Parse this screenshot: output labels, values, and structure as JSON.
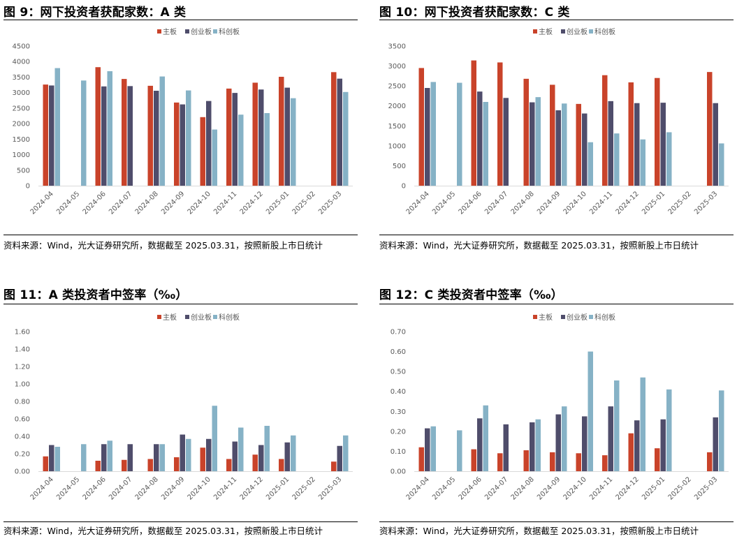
{
  "source_text": "资料来源：Wind，光大证券研究所，数据截至 2025.03.31，按照新股上市日统计",
  "colors": {
    "main": "#c9432a",
    "chinext": "#4f4d6b",
    "star": "#86b2c6"
  },
  "charts": [
    {
      "title": "图 9：网下投资者获配家数：A 类",
      "chart_data": {
        "type": "bar",
        "title": "网下投资者获配家数：A 类",
        "categories": [
          "2024-04",
          "2024-05",
          "2024-06",
          "2024-07",
          "2024-08",
          "2024-09",
          "2024-10",
          "2024-11",
          "2024-12",
          "2025-01",
          "2025-02",
          "2025-03"
        ],
        "series": [
          {
            "name": "主板",
            "values": [
              3260,
              null,
              3820,
              3440,
              3220,
              2680,
              2210,
              3130,
              3320,
              3510,
              null,
              3660
            ]
          },
          {
            "name": "创业板",
            "values": [
              3230,
              null,
              3200,
              3210,
              3060,
              2620,
              2730,
              2990,
              3100,
              3160,
              null,
              3450
            ]
          },
          {
            "name": "科创板",
            "values": [
              3790,
              3390,
              3690,
              null,
              3520,
              3070,
              1810,
              2290,
              2340,
              2820,
              null,
              3020
            ]
          }
        ],
        "ylim": [
          0,
          4500
        ],
        "yticks": [
          "0",
          "500",
          "1000",
          "1500",
          "2000",
          "2500",
          "3000",
          "3500",
          "4000",
          "4500"
        ],
        "legend_position": "top-center"
      }
    },
    {
      "title": "图 10：网下投资者获配家数：C 类",
      "chart_data": {
        "type": "bar",
        "title": "网下投资者获配家数：C 类",
        "categories": [
          "2024-04",
          "2024-05",
          "2024-06",
          "2024-07",
          "2024-08",
          "2024-09",
          "2024-10",
          "2024-11",
          "2024-12",
          "2025-01",
          "2025-02",
          "2025-03"
        ],
        "series": [
          {
            "name": "主板",
            "values": [
              2950,
              null,
              3140,
              3090,
              2680,
              2530,
              2050,
              2770,
              2590,
              2700,
              null,
              2850
            ]
          },
          {
            "name": "创业板",
            "values": [
              2450,
              null,
              2360,
              2200,
              2090,
              1890,
              1810,
              2120,
              2070,
              2080,
              null,
              2070
            ]
          },
          {
            "name": "科创板",
            "values": [
              2600,
              2580,
              2100,
              null,
              2220,
              2060,
              1090,
              1310,
              1160,
              1340,
              null,
              1060
            ]
          }
        ],
        "ylim": [
          0,
          3500
        ],
        "yticks": [
          "0",
          "500",
          "1000",
          "1500",
          "2000",
          "2500",
          "3000",
          "3500"
        ],
        "legend_position": "top-center"
      }
    },
    {
      "title": "图 11：A 类投资者中签率（‰）",
      "chart_data": {
        "type": "bar",
        "title": "A 类投资者中签率（‰）",
        "categories": [
          "2024-04",
          "2024-05",
          "2024-06",
          "2024-07",
          "2024-08",
          "2024-09",
          "2024-10",
          "2024-11",
          "2024-12",
          "2025-01",
          "2025-02",
          "2025-03"
        ],
        "series": [
          {
            "name": "主板",
            "values": [
              0.17,
              null,
              0.12,
              0.13,
              0.14,
              0.16,
              0.27,
              0.14,
              0.19,
              0.14,
              null,
              0.11
            ]
          },
          {
            "name": "创业板",
            "values": [
              0.3,
              null,
              0.31,
              0.31,
              0.31,
              0.42,
              0.37,
              0.34,
              0.3,
              0.33,
              null,
              0.29
            ]
          },
          {
            "name": "科创板",
            "values": [
              0.28,
              0.31,
              0.35,
              null,
              0.31,
              0.37,
              0.75,
              0.5,
              0.52,
              0.41,
              null,
              0.41
            ]
          }
        ],
        "ylim": [
          0,
          1.6
        ],
        "yticks": [
          "0.00",
          "0.20",
          "0.40",
          "0.60",
          "0.80",
          "1.00",
          "1.20",
          "1.40",
          "1.60"
        ],
        "legend_position": "top-center"
      }
    },
    {
      "title": "图 12：C 类投资者中签率（‰）",
      "chart_data": {
        "type": "bar",
        "title": "C 类投资者中签率（‰）",
        "categories": [
          "2024-04",
          "2024-05",
          "2024-06",
          "2024-07",
          "2024-08",
          "2024-09",
          "2024-10",
          "2024-11",
          "2024-12",
          "2025-01",
          "2025-02",
          "2025-03"
        ],
        "series": [
          {
            "name": "主板",
            "values": [
              0.12,
              null,
              0.11,
              0.09,
              0.105,
              0.095,
              0.09,
              0.08,
              0.19,
              0.115,
              null,
              0.095
            ]
          },
          {
            "name": "创业板",
            "values": [
              0.215,
              null,
              0.265,
              0.235,
              0.245,
              0.285,
              0.275,
              0.325,
              0.255,
              0.26,
              null,
              0.27
            ]
          },
          {
            "name": "科创板",
            "values": [
              0.225,
              0.205,
              0.33,
              null,
              0.26,
              0.325,
              0.6,
              0.455,
              0.47,
              0.41,
              null,
              0.405
            ]
          }
        ],
        "ylim": [
          0,
          0.7
        ],
        "yticks": [
          "0.00",
          "0.10",
          "0.20",
          "0.30",
          "0.40",
          "0.50",
          "0.60",
          "0.70"
        ],
        "legend_position": "top-center"
      }
    }
  ]
}
